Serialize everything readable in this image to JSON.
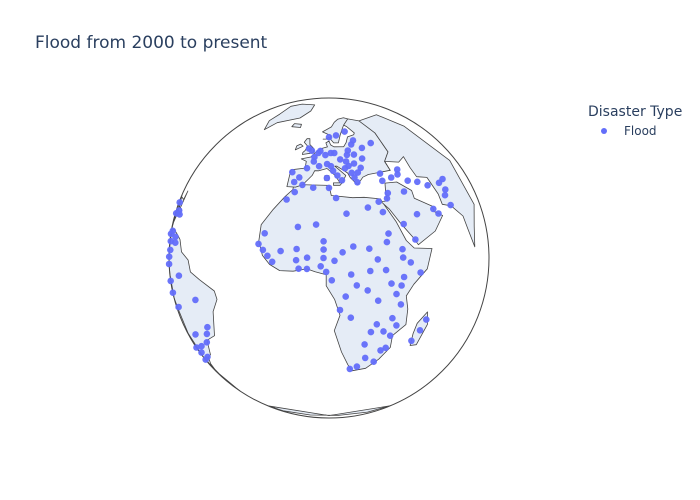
{
  "title": "Flood from 2000 to present",
  "legend": {
    "title": "Disaster Type",
    "items": [
      {
        "label": "Flood",
        "color": "#636efa"
      }
    ]
  },
  "map": {
    "projection": "orthographic",
    "center": {
      "lat": 10,
      "lon": 10
    },
    "ocean_color": "#ffffff",
    "land_color": "#e5ecf6",
    "coastline_color": "#444444"
  },
  "chart_data": {
    "type": "scatter",
    "series": [
      {
        "name": "Flood",
        "color": "#636efa",
        "points": [
          {
            "lat": 53,
            "lon": -2
          },
          {
            "lat": 52,
            "lon": 0
          },
          {
            "lat": 51,
            "lon": 4
          },
          {
            "lat": 52,
            "lon": 5
          },
          {
            "lat": 50,
            "lon": 8
          },
          {
            "lat": 51,
            "lon": 11
          },
          {
            "lat": 51,
            "lon": 13
          },
          {
            "lat": 49,
            "lon": 2
          },
          {
            "lat": 47,
            "lon": 2
          },
          {
            "lat": 45,
            "lon": 5
          },
          {
            "lat": 44,
            "lon": -1
          },
          {
            "lat": 46,
            "lon": 9
          },
          {
            "lat": 45,
            "lon": 11
          },
          {
            "lat": 43,
            "lon": 12
          },
          {
            "lat": 41,
            "lon": 14
          },
          {
            "lat": 39,
            "lon": 16
          },
          {
            "lat": 48,
            "lon": 16
          },
          {
            "lat": 47,
            "lon": 19
          },
          {
            "lat": 45,
            "lon": 20
          },
          {
            "lat": 44,
            "lon": 18
          },
          {
            "lat": 46,
            "lon": 23
          },
          {
            "lat": 44,
            "lon": 26
          },
          {
            "lat": 42,
            "lon": 24
          },
          {
            "lat": 42,
            "lon": 21
          },
          {
            "lat": 40,
            "lon": 22
          },
          {
            "lat": 38,
            "lon": 23
          },
          {
            "lat": 50,
            "lon": 20
          },
          {
            "lat": 52,
            "lon": 21
          },
          {
            "lat": 50,
            "lon": 24
          },
          {
            "lat": 48,
            "lon": 28
          },
          {
            "lat": 55,
            "lon": 24
          },
          {
            "lat": 57,
            "lon": 26
          },
          {
            "lat": 55,
            "lon": 37
          },
          {
            "lat": 53,
            "lon": 30
          },
          {
            "lat": 59,
            "lon": 10
          },
          {
            "lat": 60,
            "lon": 15
          },
          {
            "lat": 62,
            "lon": 22
          },
          {
            "lat": 40,
            "lon": -4
          },
          {
            "lat": 42,
            "lon": -8
          },
          {
            "lat": 38,
            "lon": -6
          },
          {
            "lat": 37,
            "lon": -2
          },
          {
            "lat": 40,
            "lon": 9
          },
          {
            "lat": 42,
            "lon": 45
          },
          {
            "lat": 40,
            "lon": 44
          },
          {
            "lat": 41,
            "lon": 35
          },
          {
            "lat": 38,
            "lon": 35
          },
          {
            "lat": 39,
            "lon": 40
          },
          {
            "lat": 37,
            "lon": 48
          },
          {
            "lat": 36,
            "lon": 53
          },
          {
            "lat": 34,
            "lon": 58
          },
          {
            "lat": 33,
            "lon": 44
          },
          {
            "lat": 35,
            "lon": 70
          },
          {
            "lat": 34,
            "lon": 66
          },
          {
            "lat": 31,
            "lon": 68
          },
          {
            "lat": 29,
            "lon": 66
          },
          {
            "lat": 33,
            "lon": 36
          },
          {
            "lat": 31,
            "lon": 35
          },
          {
            "lat": 30,
            "lon": 31
          },
          {
            "lat": 26,
            "lon": 32
          },
          {
            "lat": 36,
            "lon": 3
          },
          {
            "lat": 34,
            "lon": -5
          },
          {
            "lat": 31,
            "lon": -8
          },
          {
            "lat": 36,
            "lon": 10
          },
          {
            "lat": 32,
            "lon": 13
          },
          {
            "lat": 25,
            "lon": 56
          },
          {
            "lat": 24,
            "lon": 47
          },
          {
            "lat": 21,
            "lon": 40
          },
          {
            "lat": 15,
            "lon": 44
          },
          {
            "lat": 23,
            "lon": 58
          },
          {
            "lat": 25,
            "lon": 67
          },
          {
            "lat": 15,
            "lon": 32
          },
          {
            "lat": 13,
            "lon": 25
          },
          {
            "lat": 12,
            "lon": 38
          },
          {
            "lat": 9,
            "lon": 38
          },
          {
            "lat": 7,
            "lon": 41
          },
          {
            "lat": 3,
            "lon": 45
          },
          {
            "lat": 2,
            "lon": 38
          },
          {
            "lat": -1,
            "lon": 37
          },
          {
            "lat": 0,
            "lon": 33
          },
          {
            "lat": 5,
            "lon": 31
          },
          {
            "lat": -4,
            "lon": 35
          },
          {
            "lat": -8,
            "lon": 37
          },
          {
            "lat": -13,
            "lon": 34
          },
          {
            "lat": -16,
            "lon": 36
          },
          {
            "lat": -20,
            "lon": 34
          },
          {
            "lat": -25,
            "lon": 33
          },
          {
            "lat": -26,
            "lon": 31
          },
          {
            "lat": -18,
            "lon": 31
          },
          {
            "lat": -15,
            "lon": 28
          },
          {
            "lat": -18,
            "lon": 26
          },
          {
            "lat": -23,
            "lon": 24
          },
          {
            "lat": -29,
            "lon": 25
          },
          {
            "lat": -31,
            "lon": 29
          },
          {
            "lat": -33,
            "lon": 22
          },
          {
            "lat": -34,
            "lon": 19
          },
          {
            "lat": -9,
            "lon": 14
          },
          {
            "lat": -12,
            "lon": 18
          },
          {
            "lat": -4,
            "lon": 16
          },
          {
            "lat": 0,
            "lon": 20
          },
          {
            "lat": 4,
            "lon": 18
          },
          {
            "lat": -2,
            "lon": 24
          },
          {
            "lat": -6,
            "lon": 28
          },
          {
            "lat": -19,
            "lon": 47
          },
          {
            "lat": -15,
            "lon": 49
          },
          {
            "lat": -23,
            "lon": 44
          },
          {
            "lat": 18,
            "lon": -15
          },
          {
            "lat": 14,
            "lon": -17
          },
          {
            "lat": 12,
            "lon": -15
          },
          {
            "lat": 10,
            "lon": -13
          },
          {
            "lat": 8,
            "lon": -11
          },
          {
            "lat": 12,
            "lon": -8
          },
          {
            "lat": 13,
            "lon": -2
          },
          {
            "lat": 9,
            "lon": -2
          },
          {
            "lat": 6,
            "lon": -1
          },
          {
            "lat": 6,
            "lon": 2
          },
          {
            "lat": 10,
            "lon": 2
          },
          {
            "lat": 13,
            "lon": 8
          },
          {
            "lat": 10,
            "lon": 8
          },
          {
            "lat": 7,
            "lon": 7
          },
          {
            "lat": 9,
            "lon": 12
          },
          {
            "lat": 12,
            "lon": 15
          },
          {
            "lat": 16,
            "lon": 8
          },
          {
            "lat": 14,
            "lon": 19
          },
          {
            "lat": 21,
            "lon": -2
          },
          {
            "lat": 22,
            "lon": 5
          },
          {
            "lat": 26,
            "lon": 17
          },
          {
            "lat": 28,
            "lon": 26
          },
          {
            "lat": 18,
            "lon": 33
          },
          {
            "lat": 5,
            "lon": 9
          },
          {
            "lat": 2,
            "lon": 11
          },
          {
            "lat": 5,
            "lon": 25
          },
          {
            "lat": 9,
            "lon": 28
          },
          {
            "lat": 19,
            "lon": -72
          },
          {
            "lat": 18,
            "lon": -69
          },
          {
            "lat": 15,
            "lon": -86
          },
          {
            "lat": 14,
            "lon": -88
          },
          {
            "lat": 12,
            "lon": -85
          },
          {
            "lat": 10,
            "lon": -83
          },
          {
            "lat": 9,
            "lon": -79
          },
          {
            "lat": 17,
            "lon": -77
          },
          {
            "lat": 21,
            "lon": -78
          },
          {
            "lat": 11,
            "lon": -74
          },
          {
            "lat": 7,
            "lon": -75
          },
          {
            "lat": 4,
            "lon": -74
          },
          {
            "lat": 1,
            "lon": -77
          },
          {
            "lat": 8,
            "lon": -66
          },
          {
            "lat": 10,
            "lon": -67
          },
          {
            "lat": -2,
            "lon": -79
          },
          {
            "lat": -8,
            "lon": -78
          },
          {
            "lat": -12,
            "lon": -76
          },
          {
            "lat": -16,
            "lon": -68
          },
          {
            "lat": -3,
            "lon": -60
          },
          {
            "lat": -10,
            "lon": -48
          },
          {
            "lat": -20,
            "lon": -44
          },
          {
            "lat": -23,
            "lon": -46
          },
          {
            "lat": -27,
            "lon": -49
          },
          {
            "lat": -30,
            "lon": -57
          },
          {
            "lat": -25,
            "lon": -57
          },
          {
            "lat": -35,
            "lon": -58
          },
          {
            "lat": -34,
            "lon": -64
          },
          {
            "lat": -38,
            "lon": -68
          },
          {
            "lat": -33,
            "lon": -71
          },
          {
            "lat": -39,
            "lon": -72
          }
        ]
      }
    ]
  }
}
